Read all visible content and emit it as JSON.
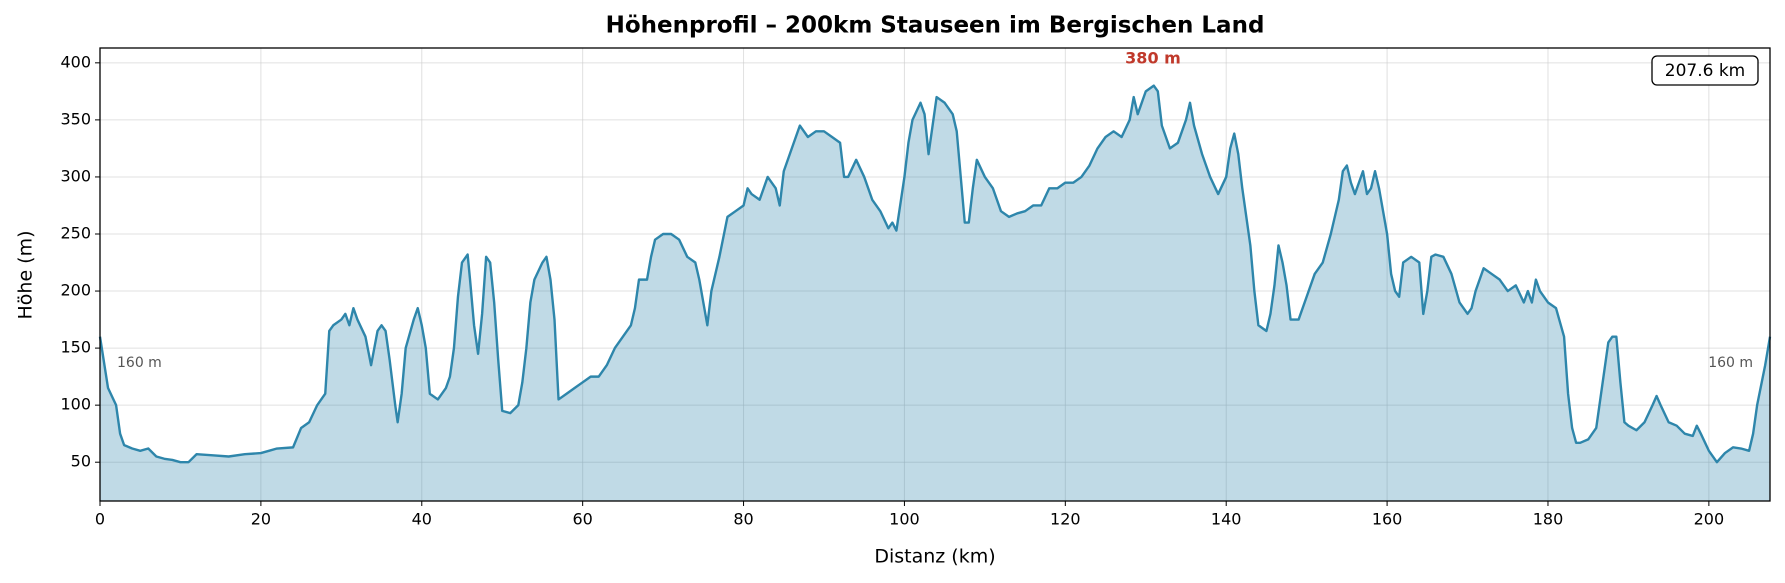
{
  "chart_data": {
    "type": "area",
    "title": "Höhenprofil – 200km Stauseen im Bergischen Land",
    "x_label": "Distanz (km)",
    "y_label": "Höhe (m)",
    "annotations": {
      "max": "380 m",
      "start": "160 m",
      "end": "160 m",
      "distance": "207.6 km"
    },
    "xlim": [
      0,
      207.6
    ],
    "ylim": [
      16,
      413
    ],
    "xticks": [
      0,
      20,
      40,
      60,
      80,
      100,
      120,
      140,
      160,
      180,
      200
    ],
    "yticks": [
      50,
      100,
      150,
      200,
      250,
      300,
      350,
      400
    ],
    "grid": true,
    "x": [
      0,
      1,
      2,
      2.5,
      3,
      4,
      5,
      6,
      7,
      8,
      9,
      10,
      11,
      12,
      14,
      16,
      18,
      20,
      21,
      22,
      24,
      25,
      26,
      27,
      28,
      28.5,
      29,
      30,
      30.5,
      31,
      31.5,
      32,
      33,
      33.7,
      34.5,
      35,
      35.5,
      36,
      36.7,
      37,
      37.5,
      38,
      39,
      39.5,
      40,
      40.5,
      41,
      42,
      43,
      43.5,
      44,
      44.5,
      45,
      45.7,
      46,
      46.5,
      47,
      47.5,
      48,
      48.5,
      49,
      49.5,
      50,
      51,
      52,
      52.5,
      53,
      53.5,
      54,
      55,
      55.5,
      56,
      56.5,
      57,
      58,
      59,
      60,
      61,
      62,
      63,
      64,
      65,
      66,
      66.5,
      67,
      68,
      68.5,
      69,
      70,
      71,
      72,
      73,
      74,
      74.5,
      75,
      75.5,
      76,
      77,
      78,
      79,
      80,
      80.5,
      81,
      82,
      83,
      84,
      84.5,
      85,
      86,
      87,
      88,
      89,
      90,
      91,
      92,
      92.5,
      93,
      94,
      95,
      96,
      97,
      98,
      98.5,
      99,
      100,
      100.5,
      101,
      102,
      102.5,
      103,
      103.5,
      104,
      105,
      106,
      106.5,
      107,
      107.5,
      108,
      108.5,
      109,
      110,
      111,
      112,
      113,
      114,
      115,
      116,
      117,
      118,
      119,
      120,
      121,
      122,
      123,
      124,
      125,
      126,
      127,
      128,
      128.5,
      129,
      130,
      131,
      131.5,
      132,
      133,
      134,
      134.5,
      135,
      135.5,
      136,
      137,
      138,
      139,
      140,
      140.5,
      141,
      141.5,
      142,
      143,
      143.5,
      144,
      145,
      145.5,
      146,
      146.5,
      147,
      147.5,
      148,
      149,
      150,
      151,
      152,
      153,
      154,
      154.5,
      155,
      155.5,
      156,
      157,
      157.5,
      158,
      158.5,
      159,
      160,
      160.5,
      161,
      161.5,
      162,
      163,
      164,
      164.5,
      165,
      165.5,
      166,
      167,
      168,
      169,
      170,
      170.5,
      171,
      172,
      173,
      174,
      175,
      176,
      177,
      177.5,
      178,
      178.5,
      179,
      180,
      181,
      182,
      182.5,
      183,
      183.5,
      184,
      185,
      186,
      187,
      187.5,
      188,
      188.5,
      189,
      189.5,
      190,
      191,
      192,
      193,
      193.5,
      194,
      195,
      196,
      197,
      198,
      198.5,
      199,
      200,
      201,
      202,
      203,
      204,
      205,
      205.5,
      206,
      207,
      207.6
    ],
    "values": [
      160,
      115,
      100,
      75,
      65,
      62,
      60,
      62,
      55,
      53,
      52,
      50,
      50,
      57,
      56,
      55,
      57,
      58,
      60,
      62,
      63,
      80,
      85,
      100,
      110,
      165,
      170,
      175,
      180,
      170,
      185,
      175,
      160,
      135,
      165,
      170,
      165,
      140,
      100,
      85,
      110,
      150,
      175,
      185,
      170,
      150,
      110,
      105,
      115,
      125,
      150,
      195,
      225,
      232,
      210,
      170,
      145,
      180,
      230,
      225,
      190,
      140,
      95,
      93,
      100,
      120,
      150,
      190,
      210,
      225,
      230,
      210,
      175,
      105,
      110,
      115,
      120,
      125,
      125,
      135,
      150,
      160,
      170,
      185,
      210,
      210,
      230,
      245,
      250,
      250,
      245,
      230,
      225,
      210,
      190,
      170,
      200,
      230,
      265,
      270,
      275,
      290,
      285,
      280,
      300,
      290,
      275,
      305,
      325,
      345,
      335,
      340,
      340,
      335,
      330,
      300,
      300,
      315,
      300,
      280,
      270,
      255,
      260,
      253,
      300,
      330,
      350,
      365,
      355,
      320,
      345,
      370,
      365,
      355,
      340,
      300,
      260,
      260,
      290,
      315,
      300,
      290,
      270,
      265,
      268,
      270,
      275,
      275,
      290,
      290,
      295,
      295,
      300,
      310,
      325,
      335,
      340,
      335,
      350,
      370,
      355,
      375,
      380,
      375,
      345,
      325,
      330,
      340,
      350,
      365,
      345,
      320,
      300,
      285,
      300,
      325,
      338,
      320,
      290,
      240,
      200,
      170,
      165,
      180,
      205,
      240,
      225,
      205,
      175,
      175,
      195,
      215,
      225,
      250,
      280,
      305,
      310,
      295,
      285,
      305,
      285,
      290,
      305,
      290,
      250,
      215,
      200,
      195,
      225,
      230,
      225,
      180,
      200,
      230,
      232,
      230,
      215,
      190,
      180,
      185,
      200,
      220,
      215,
      210,
      200,
      205,
      190,
      200,
      190,
      210,
      200,
      190,
      185,
      160,
      110,
      80,
      67,
      67,
      70,
      80,
      130,
      155,
      160,
      160,
      120,
      85,
      82,
      78,
      85,
      100,
      108,
      100,
      85,
      82,
      75,
      73,
      82,
      75,
      60,
      50,
      58,
      63,
      62,
      60,
      75,
      100,
      135,
      160
    ],
    "color": "#2e86ab",
    "annotation_color": "#c0392b"
  }
}
